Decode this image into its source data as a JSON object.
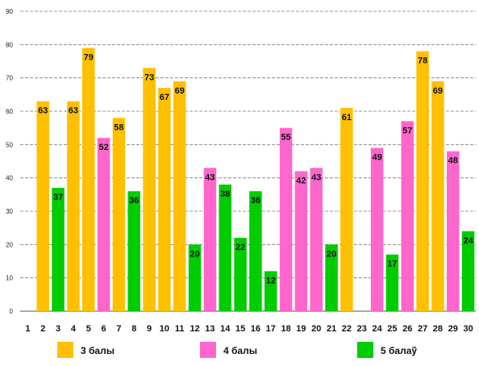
{
  "chart_data": {
    "type": "bar",
    "categories": [
      "1",
      "2",
      "3",
      "4",
      "5",
      "6",
      "7",
      "8",
      "9",
      "10",
      "11",
      "12",
      "13",
      "14",
      "15",
      "16",
      "17",
      "18",
      "19",
      "20",
      "21",
      "22",
      "23",
      "24",
      "25",
      "26",
      "27",
      "28",
      "29",
      "30"
    ],
    "values": [
      null,
      63,
      37,
      63,
      79,
      52,
      58,
      36,
      73,
      67,
      69,
      20,
      43,
      38,
      22,
      36,
      12,
      55,
      42,
      43,
      20,
      61,
      null,
      49,
      17,
      57,
      78,
      69,
      48,
      24
    ],
    "groups": [
      null,
      0,
      2,
      0,
      0,
      1,
      0,
      2,
      0,
      0,
      0,
      2,
      1,
      2,
      2,
      2,
      2,
      1,
      1,
      1,
      2,
      0,
      null,
      1,
      2,
      1,
      0,
      0,
      1,
      2
    ],
    "ylim": [
      0,
      90
    ],
    "yticks": [
      0,
      10,
      20,
      30,
      40,
      50,
      60,
      70,
      80,
      90
    ],
    "grid": true,
    "legend_position": "bottom",
    "series": [
      {
        "name": "3 балы",
        "color": "#FFC000"
      },
      {
        "name": "4 балы",
        "color": "#FF66CC"
      },
      {
        "name": "5 балаў",
        "color": "#00CC00"
      }
    ]
  }
}
